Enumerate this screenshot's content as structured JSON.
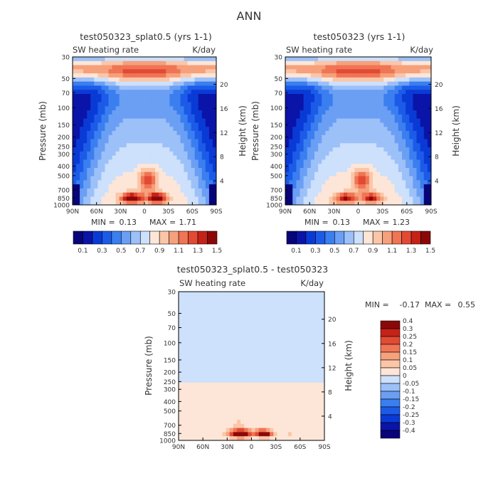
{
  "figure": {
    "title": "ANN"
  },
  "colors": {
    "abs_scale": [
      "#08057a",
      "#0a14a8",
      "#0a3ad6",
      "#1c5be8",
      "#3a7ef0",
      "#6a9ff4",
      "#9cc0f8",
      "#cde0fc",
      "#fde6d8",
      "#fbc6a8",
      "#f6a07c",
      "#ef7554",
      "#e24a34",
      "#c52218",
      "#8c0808"
    ],
    "diff_scale": [
      "#08057a",
      "#0a14a8",
      "#0a3ad6",
      "#1c5be8",
      "#3a7ef0",
      "#6a9ff4",
      "#9cc0f8",
      "#cde0fc",
      "#fde6d8",
      "#fbc6a8",
      "#f6a07c",
      "#ef7554",
      "#e24a34",
      "#c52218",
      "#8c0808"
    ]
  },
  "chart_data": [
    {
      "type": "heatmap",
      "id": "left",
      "title": "test050323_splat0.5 (yrs 1-1)",
      "subtitle_left": "SW heating rate",
      "subtitle_right": "K/day",
      "ylabel": "Pressure (mb)",
      "y2label": "Height (km)",
      "xticks": [
        "90N",
        "60N",
        "30N",
        "0",
        "30S",
        "60S",
        "90S"
      ],
      "yticks": [
        "30",
        "50",
        "70",
        "100",
        "150",
        "200",
        "250",
        "300",
        "400",
        "500",
        "700",
        "850",
        "1000"
      ],
      "y2ticks": [
        "20",
        "16",
        "12",
        "8",
        "4"
      ],
      "min_label": "MIN =",
      "min_value": "0.13",
      "max_label": "MAX =",
      "max_value": "1.71",
      "colorbar_labels": [
        "0.1",
        "0.3",
        "0.5",
        "0.7",
        "0.9",
        "1.1",
        "1.3",
        "1.5"
      ],
      "levels": [
        0.1,
        0.2,
        0.3,
        0.4,
        0.5,
        0.6,
        0.7,
        0.8,
        0.9,
        1.0,
        1.1,
        1.2,
        1.3,
        1.4,
        1.5
      ],
      "max": 1.71,
      "peak_strength": 1.0
    },
    {
      "type": "heatmap",
      "id": "right",
      "title": "test050323 (yrs 1-1)",
      "subtitle_left": "SW heating rate",
      "subtitle_right": "K/day",
      "ylabel": "Pressure (mb)",
      "y2label": "Height (km)",
      "xticks": [
        "90N",
        "60N",
        "30N",
        "0",
        "30S",
        "60S",
        "90S"
      ],
      "yticks": [
        "30",
        "50",
        "70",
        "100",
        "150",
        "200",
        "250",
        "300",
        "400",
        "500",
        "700",
        "850",
        "1000"
      ],
      "y2ticks": [
        "20",
        "16",
        "12",
        "8",
        "4"
      ],
      "min_label": "MIN =",
      "min_value": "0.13",
      "max_label": "MAX =",
      "max_value": "1.23",
      "colorbar_labels": [
        "0.1",
        "0.3",
        "0.5",
        "0.7",
        "0.9",
        "1.1",
        "1.3",
        "1.5"
      ],
      "levels": [
        0.1,
        0.2,
        0.3,
        0.4,
        0.5,
        0.6,
        0.7,
        0.8,
        0.9,
        1.0,
        1.1,
        1.2,
        1.3,
        1.4,
        1.5
      ],
      "max": 1.23,
      "peak_strength": 0.72
    },
    {
      "type": "heatmap",
      "id": "diff",
      "title": "test050323_splat0.5 - test050323",
      "subtitle_left": "SW heating rate",
      "subtitle_right": "K/day",
      "ylabel": "Pressure (mb)",
      "y2label": "Height (km)",
      "xticks": [
        "90N",
        "60N",
        "30N",
        "0",
        "30S",
        "60S",
        "90S"
      ],
      "yticks": [
        "30",
        "50",
        "70",
        "100",
        "150",
        "200",
        "250",
        "300",
        "400",
        "500",
        "700",
        "850",
        "1000"
      ],
      "y2ticks": [
        "20",
        "16",
        "12",
        "8",
        "4"
      ],
      "min_label": "MIN =",
      "min_value": "-0.17",
      "max_label": "MAX =",
      "max_value": "0.55",
      "colorbar_labels": [
        "0.4",
        "0.3",
        "0.25",
        "0.2",
        "0.15",
        "0.1",
        "0.05",
        "0",
        "-0.05",
        "-0.1",
        "-0.15",
        "-0.2",
        "-0.25",
        "-0.3",
        "-0.4"
      ],
      "levels": [
        -0.4,
        -0.3,
        -0.25,
        -0.2,
        -0.15,
        -0.1,
        -0.05,
        0,
        0.05,
        0.1,
        0.15,
        0.2,
        0.25,
        0.3,
        0.4
      ],
      "max": 0.55,
      "min": -0.17
    }
  ]
}
